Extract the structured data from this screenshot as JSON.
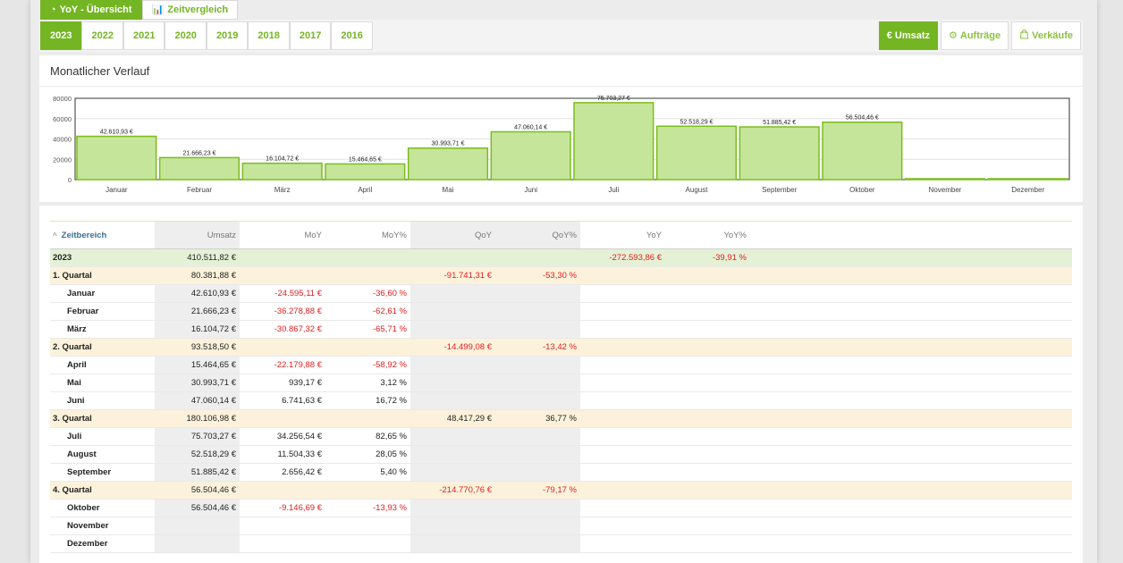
{
  "tabs": [
    {
      "label": "YoY - Übersicht",
      "icon": "chart-pie-icon",
      "active": true
    },
    {
      "label": "Zeitvergleich",
      "icon": "bar-chart-icon",
      "active": false
    }
  ],
  "years": [
    "2023",
    "2022",
    "2021",
    "2020",
    "2019",
    "2018",
    "2017",
    "2016"
  ],
  "active_year": "2023",
  "metrics": [
    {
      "label": "Umsatz",
      "icon": "euro-icon",
      "glyph": "€",
      "active": true
    },
    {
      "label": "Aufträge",
      "icon": "orders-icon",
      "glyph": "⚙",
      "active": false
    },
    {
      "label": "Verkäufe",
      "icon": "shopping-bag-icon",
      "glyph": "🛍",
      "active": false
    }
  ],
  "chart_panel": {
    "title": "Monatlicher Verlauf"
  },
  "chart_data": {
    "type": "bar",
    "categories": [
      "Januar",
      "Februar",
      "März",
      "April",
      "Mai",
      "Juni",
      "Juli",
      "August",
      "September",
      "Oktober",
      "November",
      "Dezember"
    ],
    "values": [
      42610.93,
      21666.23,
      16104.72,
      15464.65,
      30993.71,
      47060.14,
      75703.27,
      52518.29,
      51885.42,
      56504.46,
      0,
      0
    ],
    "data_labels": [
      "42.610,93 €",
      "21.666,23 €",
      "16.104,72 €",
      "15.464,65 €",
      "30.993,71 €",
      "47.060,14 €",
      "75.703,27 €",
      "52.518,29 €",
      "51.885,42 €",
      "56.504,46 €",
      "",
      ""
    ],
    "yticks": [
      "80000",
      "60000",
      "40000",
      "20000",
      "0"
    ],
    "ylim": [
      0,
      80000
    ],
    "grid": true,
    "colors": {
      "fill": "#c5e59a",
      "stroke": "#7cbd1e"
    }
  },
  "table": {
    "headers": [
      "Zeitbereich",
      "Umsatz",
      "MoY",
      "MoY%",
      "QoY",
      "QoY%",
      "YoY",
      "YoY%"
    ],
    "rows": [
      {
        "type": "year",
        "cells": [
          "2023",
          "410.511,82 €",
          "",
          "",
          "",
          "",
          "-272.593,86 €",
          "-39,91 %"
        ]
      },
      {
        "type": "quarter",
        "cells": [
          "1. Quartal",
          "80.381,88 €",
          "",
          "",
          "-91.741,31 €",
          "-53,30 %",
          "",
          ""
        ]
      },
      {
        "type": "month",
        "cells": [
          "Januar",
          "42.610,93 €",
          "-24.595,11 €",
          "-36,60 %",
          "",
          "",
          "",
          ""
        ]
      },
      {
        "type": "month",
        "cells": [
          "Februar",
          "21.666,23 €",
          "-36.278,88 €",
          "-62,61 %",
          "",
          "",
          "",
          ""
        ]
      },
      {
        "type": "month",
        "cells": [
          "März",
          "16.104,72 €",
          "-30.867,32 €",
          "-65,71 %",
          "",
          "",
          "",
          ""
        ]
      },
      {
        "type": "quarter",
        "cells": [
          "2. Quartal",
          "93.518,50 €",
          "",
          "",
          "-14.499,08 €",
          "-13,42 %",
          "",
          ""
        ]
      },
      {
        "type": "month",
        "cells": [
          "April",
          "15.464,65 €",
          "-22.179,88 €",
          "-58,92 %",
          "",
          "",
          "",
          ""
        ]
      },
      {
        "type": "month",
        "cells": [
          "Mai",
          "30.993,71 €",
          "939,17 €",
          "3,12 %",
          "",
          "",
          "",
          ""
        ]
      },
      {
        "type": "month",
        "cells": [
          "Juni",
          "47.060,14 €",
          "6.741,63 €",
          "16,72 %",
          "",
          "",
          "",
          ""
        ]
      },
      {
        "type": "quarter",
        "cells": [
          "3. Quartal",
          "180.106,98 €",
          "",
          "",
          "48.417,29 €",
          "36,77 %",
          "",
          ""
        ]
      },
      {
        "type": "month",
        "cells": [
          "Juli",
          "75.703,27 €",
          "34.256,54 €",
          "82,65 %",
          "",
          "",
          "",
          ""
        ]
      },
      {
        "type": "month",
        "cells": [
          "August",
          "52.518,29 €",
          "11.504,33 €",
          "28,05 %",
          "",
          "",
          "",
          ""
        ]
      },
      {
        "type": "month",
        "cells": [
          "September",
          "51.885,42 €",
          "2.656,42 €",
          "5,40 %",
          "",
          "",
          "",
          ""
        ]
      },
      {
        "type": "quarter",
        "cells": [
          "4. Quartal",
          "56.504,46 €",
          "",
          "",
          "-214.770,76 €",
          "-79,17 %",
          "",
          ""
        ]
      },
      {
        "type": "month",
        "cells": [
          "Oktober",
          "56.504,46 €",
          "-9.146,69 €",
          "-13,93 %",
          "",
          "",
          "",
          ""
        ]
      },
      {
        "type": "month",
        "cells": [
          "November",
          "",
          "",
          "",
          "",
          "",
          "",
          ""
        ]
      },
      {
        "type": "month",
        "cells": [
          "Dezember",
          "",
          "",
          "",
          "",
          "",
          "",
          ""
        ]
      }
    ]
  },
  "colors": {
    "accent": "#73b522",
    "negative": "#e02020",
    "year_row": "#e5f1d6",
    "quarter_row": "#fcf2db"
  }
}
